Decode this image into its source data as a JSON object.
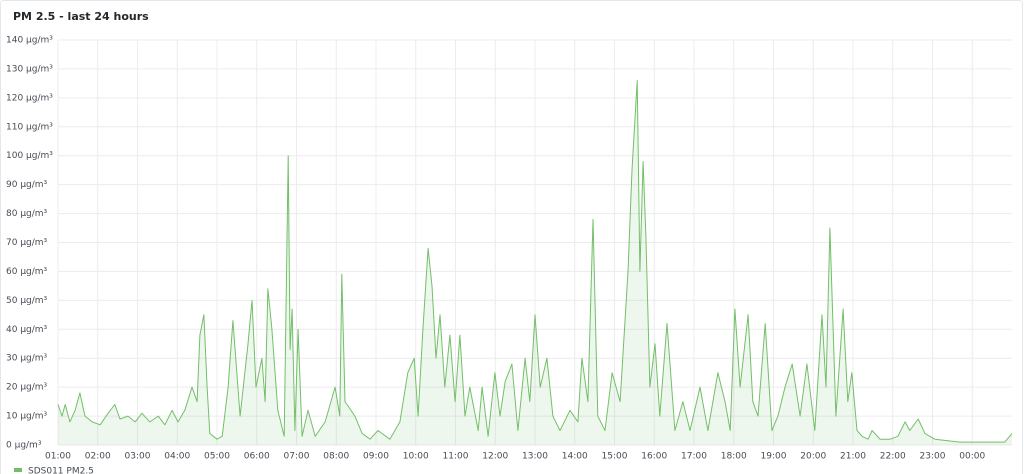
{
  "chart_data": {
    "type": "line",
    "title": "PM 2.5 - last 24 hours",
    "x": [
      1.0,
      1.1,
      1.18,
      1.3,
      1.43,
      1.55,
      1.68,
      1.86,
      2.06,
      2.26,
      2.43,
      2.56,
      2.76,
      2.94,
      3.11,
      3.31,
      3.52,
      3.69,
      3.87,
      4.02,
      4.19,
      4.37,
      4.5,
      4.57,
      4.67,
      4.75,
      4.82,
      5.0,
      5.13,
      5.28,
      5.4,
      5.58,
      5.78,
      5.88,
      5.98,
      6.13,
      6.21,
      6.28,
      6.38,
      6.53,
      6.69,
      6.79,
      6.84,
      6.89,
      6.96,
      7.04,
      7.14,
      7.29,
      7.47,
      7.72,
      7.97,
      8.09,
      8.14,
      8.22,
      8.47,
      8.65,
      8.85,
      9.05,
      9.35,
      9.6,
      9.8,
      9.96,
      10.06,
      10.18,
      10.31,
      10.41,
      10.51,
      10.61,
      10.73,
      10.86,
      10.99,
      11.11,
      11.24,
      11.36,
      11.57,
      11.67,
      11.82,
      11.99,
      12.12,
      12.25,
      12.42,
      12.57,
      12.75,
      12.87,
      13.0,
      13.13,
      13.3,
      13.45,
      13.63,
      13.88,
      14.08,
      14.18,
      14.33,
      14.46,
      14.58,
      14.76,
      14.94,
      15.14,
      15.34,
      15.44,
      15.57,
      15.64,
      15.72,
      15.79,
      15.89,
      16.02,
      16.14,
      16.32,
      16.52,
      16.72,
      16.9,
      17.15,
      17.35,
      17.6,
      17.78,
      17.91,
      18.03,
      18.16,
      18.36,
      18.48,
      18.61,
      18.79,
      18.96,
      19.11,
      19.29,
      19.47,
      19.67,
      19.84,
      20.04,
      20.22,
      20.32,
      20.42,
      20.57,
      20.75,
      20.87,
      20.97,
      21.1,
      21.23,
      21.38,
      21.48,
      21.68,
      21.93,
      22.13,
      22.31,
      22.43,
      22.64,
      22.81,
      23.06,
      23.69,
      24.45,
      24.82,
      25.0
    ],
    "series": [
      {
        "name": "SDS011 PM2.5",
        "color": "#73bf69",
        "values": [
          14,
          10,
          14,
          8,
          12,
          18,
          10,
          8,
          7,
          11,
          14,
          9,
          10,
          8,
          11,
          8,
          10,
          7,
          12,
          8,
          12,
          20,
          15,
          38,
          45,
          20,
          4,
          2,
          3,
          20,
          43,
          10,
          35,
          50,
          20,
          30,
          15,
          54,
          40,
          12,
          3,
          100,
          33,
          47,
          5,
          40,
          3,
          12,
          3,
          8,
          20,
          10,
          59,
          15,
          10,
          4,
          2,
          5,
          2,
          8,
          25,
          30,
          10,
          40,
          68,
          55,
          30,
          45,
          20,
          38,
          15,
          38,
          10,
          20,
          5,
          20,
          3,
          25,
          10,
          22,
          28,
          5,
          30,
          15,
          45,
          20,
          30,
          10,
          5,
          12,
          8,
          30,
          15,
          78,
          10,
          5,
          25,
          15,
          60,
          95,
          126,
          60,
          98,
          72,
          20,
          35,
          10,
          42,
          5,
          15,
          5,
          20,
          5,
          25,
          15,
          5,
          47,
          20,
          45,
          15,
          10,
          42,
          5,
          10,
          20,
          28,
          10,
          28,
          5,
          45,
          20,
          75,
          10,
          47,
          15,
          25,
          5,
          3,
          2,
          5,
          2,
          2,
          3,
          8,
          5,
          9,
          4,
          2,
          1,
          1,
          1,
          4
        ]
      }
    ],
    "xlim": [
      1,
      25
    ],
    "xticks": [
      {
        "value": 1,
        "label": "01:00"
      },
      {
        "value": 2,
        "label": "02:00"
      },
      {
        "value": 3,
        "label": "03:00"
      },
      {
        "value": 4,
        "label": "04:00"
      },
      {
        "value": 5,
        "label": "05:00"
      },
      {
        "value": 6,
        "label": "06:00"
      },
      {
        "value": 7,
        "label": "07:00"
      },
      {
        "value": 8,
        "label": "08:00"
      },
      {
        "value": 9,
        "label": "09:00"
      },
      {
        "value": 10,
        "label": "10:00"
      },
      {
        "value": 11,
        "label": "11:00"
      },
      {
        "value": 12,
        "label": "12:00"
      },
      {
        "value": 13,
        "label": "13:00"
      },
      {
        "value": 14,
        "label": "14:00"
      },
      {
        "value": 15,
        "label": "15:00"
      },
      {
        "value": 16,
        "label": "16:00"
      },
      {
        "value": 17,
        "label": "17:00"
      },
      {
        "value": 18,
        "label": "18:00"
      },
      {
        "value": 19,
        "label": "19:00"
      },
      {
        "value": 20,
        "label": "20:00"
      },
      {
        "value": 21,
        "label": "21:00"
      },
      {
        "value": 22,
        "label": "22:00"
      },
      {
        "value": 23,
        "label": "23:00"
      },
      {
        "value": 24,
        "label": "00:00"
      }
    ],
    "ylim": [
      0,
      140
    ],
    "yticks": [
      {
        "value": 0,
        "label": "0 μg/m³"
      },
      {
        "value": 10,
        "label": "10 μg/m³"
      },
      {
        "value": 20,
        "label": "20 μg/m³"
      },
      {
        "value": 30,
        "label": "30 μg/m³"
      },
      {
        "value": 40,
        "label": "40 μg/m³"
      },
      {
        "value": 50,
        "label": "50 μg/m³"
      },
      {
        "value": 60,
        "label": "60 μg/m³"
      },
      {
        "value": 70,
        "label": "70 μg/m³"
      },
      {
        "value": 80,
        "label": "80 μg/m³"
      },
      {
        "value": 90,
        "label": "90 μg/m³"
      },
      {
        "value": 100,
        "label": "100 μg/m³"
      },
      {
        "value": 110,
        "label": "110 μg/m³"
      },
      {
        "value": 120,
        "label": "120 μg/m³"
      },
      {
        "value": 130,
        "label": "130 μg/m³"
      },
      {
        "value": 140,
        "label": "140 μg/m³"
      }
    ],
    "grid": true
  }
}
